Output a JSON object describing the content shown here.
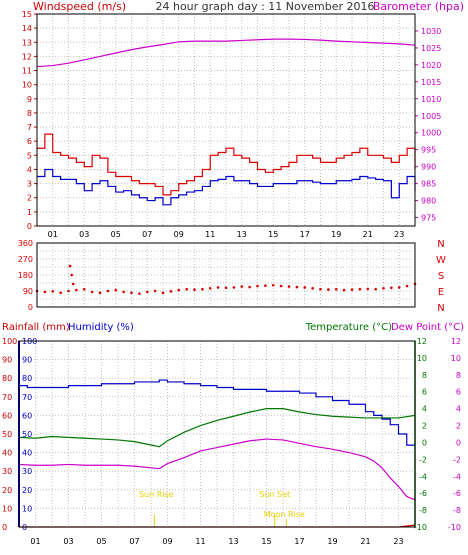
{
  "header": {
    "left_label": "Windspeed (m/s)",
    "center_label": "24 hour graph day : 11 November 2016",
    "right_label": "Barometer (hpa)"
  },
  "colors": {
    "wind_axis": "#cc0000",
    "baro_axis": "#cc00cc",
    "gust": "#dd0000",
    "average": "#0000cc",
    "barometer": "#cc00cc",
    "direction": "#dd0000",
    "rainfall": "#cc0000",
    "humidity": "#0000cc",
    "temperature": "#007700",
    "dew_point": "#cc00cc",
    "sun_moon": "#e8d000",
    "grid": "#c0c0c0"
  },
  "hour_ticks": [
    "01",
    "03",
    "05",
    "07",
    "09",
    "11",
    "13",
    "15",
    "17",
    "19",
    "21",
    "23"
  ],
  "panel2": {
    "compass_labels": [
      "N",
      "W",
      "S",
      "E",
      "N"
    ]
  },
  "panel3": {
    "label_rainfall": "Rainfall (mm)",
    "label_humidity": "Humidity (%)",
    "label_temperature": "Temperature (°C)",
    "label_dewpoint": "Dew Point (°C)",
    "sunrise_label": "Sun Rise",
    "sunset_label": "Sun Set",
    "moonrise_label": "Moon Rise"
  },
  "chart_data": [
    {
      "type": "line",
      "x_unit": "hour",
      "xlim": [
        0,
        24
      ],
      "y_left": {
        "ylim": [
          0,
          15
        ],
        "ticks": [
          0,
          1,
          2,
          3,
          4,
          5,
          6,
          7,
          8,
          9,
          10,
          11,
          12,
          13,
          14,
          15
        ]
      },
      "y_right": {
        "ylim": [
          972.5,
          1035
        ],
        "ticks": [
          975,
          980,
          985,
          990,
          995,
          1000,
          1005,
          1010,
          1015,
          1020,
          1025,
          1030
        ]
      },
      "series": [
        {
          "name": "Windspeed (m/s)",
          "axis": "left",
          "x": [
            0,
            0.5,
            1,
            1.5,
            2,
            2.5,
            3,
            3.5,
            4,
            4.5,
            5,
            5.5,
            6,
            6.5,
            7,
            7.5,
            8,
            8.5,
            9,
            9.5,
            10,
            10.5,
            11,
            11.5,
            12,
            12.5,
            13,
            13.5,
            14,
            14.5,
            15,
            15.5,
            16,
            16.5,
            17,
            17.5,
            18,
            18.5,
            19,
            19.5,
            20,
            20.5,
            21,
            21.5,
            22,
            22.5,
            23,
            23.5,
            24
          ],
          "y": [
            5.5,
            6.5,
            5.2,
            5,
            4.8,
            4.5,
            4.2,
            5,
            4.8,
            3.8,
            3.5,
            3.5,
            3.2,
            3,
            3,
            2.8,
            2.2,
            2.5,
            3,
            3.2,
            3.5,
            4,
            5,
            5.2,
            5.5,
            5,
            4.8,
            4.5,
            4,
            3.8,
            4,
            4.2,
            4.5,
            5,
            5,
            4.8,
            4.5,
            4.5,
            4.8,
            5,
            5.2,
            5.5,
            5,
            5,
            4.8,
            4.5,
            5,
            5.5,
            4
          ]
        },
        {
          "name": "Windspeed average",
          "axis": "left",
          "x": [
            0,
            0.5,
            1,
            1.5,
            2,
            2.5,
            3,
            3.5,
            4,
            4.5,
            5,
            5.5,
            6,
            6.5,
            7,
            7.5,
            8,
            8.5,
            9,
            9.5,
            10,
            10.5,
            11,
            11.5,
            12,
            12.5,
            13,
            13.5,
            14,
            14.5,
            15,
            15.5,
            16,
            16.5,
            17,
            17.5,
            18,
            18.5,
            19,
            19.5,
            20,
            20.5,
            21,
            21.5,
            22,
            22.5,
            23,
            23.5,
            24
          ],
          "y": [
            3.5,
            4,
            3.5,
            3.3,
            3.3,
            3,
            2.5,
            3,
            3.2,
            2.8,
            2.4,
            2.5,
            2.2,
            2,
            1.8,
            2,
            1.5,
            2,
            2.2,
            2.4,
            2.5,
            2.8,
            3.2,
            3.3,
            3.5,
            3.2,
            3.2,
            3,
            2.8,
            2.8,
            3,
            3,
            3,
            3.2,
            3.2,
            3.1,
            3,
            3,
            3.2,
            3.2,
            3.3,
            3.5,
            3.4,
            3.3,
            3.2,
            2,
            3,
            3.5,
            2.5
          ]
        },
        {
          "name": "Barometer (hpa)",
          "axis": "right",
          "x": [
            0,
            1,
            2,
            3,
            4,
            5,
            6,
            7,
            8,
            9,
            10,
            11,
            12,
            13,
            14,
            15,
            16,
            17,
            18,
            19,
            20,
            21,
            22,
            23,
            24
          ],
          "y": [
            1019.5,
            1019.8,
            1020.5,
            1021.5,
            1022.5,
            1023.5,
            1024.5,
            1025.3,
            1026,
            1026.8,
            1027,
            1027,
            1027,
            1027.2,
            1027.4,
            1027.6,
            1027.6,
            1027.5,
            1027.3,
            1027,
            1026.8,
            1026.6,
            1026.4,
            1026.2,
            1025.8
          ]
        }
      ]
    },
    {
      "type": "scatter",
      "x_unit": "hour",
      "xlim": [
        0,
        24
      ],
      "ylim": [
        0,
        360
      ],
      "y_ticks": [
        0,
        45,
        90,
        135,
        180,
        225,
        270,
        315,
        360
      ],
      "series": [
        {
          "name": "Wind direction",
          "x": [
            0,
            0.5,
            1,
            1.5,
            2,
            2.5,
            3,
            3.5,
            4,
            4.5,
            5,
            5.5,
            6,
            6.5,
            7,
            7.5,
            8,
            8.5,
            9,
            9.5,
            10,
            10.5,
            11,
            11.5,
            12,
            12.5,
            13,
            13.5,
            14,
            14.5,
            15,
            15.5,
            16,
            16.5,
            17,
            17.5,
            18,
            18.5,
            19,
            19.5,
            20,
            20.5,
            21,
            21.5,
            22,
            22.5,
            23,
            23.5,
            24,
            2.1,
            2.2,
            2.3
          ],
          "y": [
            90,
            85,
            88,
            80,
            90,
            95,
            100,
            85,
            80,
            90,
            95,
            85,
            80,
            75,
            85,
            90,
            80,
            88,
            95,
            100,
            98,
            100,
            105,
            110,
            108,
            110,
            115,
            112,
            118,
            120,
            122,
            118,
            115,
            112,
            110,
            105,
            100,
            98,
            100,
            95,
            98,
            100,
            102,
            100,
            105,
            108,
            110,
            118,
            130,
            230,
            180,
            130
          ]
        }
      ]
    },
    {
      "type": "line",
      "x_unit": "hour",
      "xlim": [
        0,
        24
      ],
      "y_left": {
        "ylim": [
          0,
          100
        ],
        "ticks": [
          0,
          10,
          20,
          30,
          40,
          50,
          60,
          70,
          80,
          90,
          100
        ]
      },
      "y_right": {
        "ylim": [
          -10,
          12
        ],
        "ticks": [
          -10,
          -8,
          -6,
          -4,
          -2,
          0,
          2,
          4,
          6,
          8,
          10,
          12
        ]
      },
      "series": [
        {
          "name": "Rainfall (mm)",
          "axis": "left",
          "x": [
            0,
            1,
            2,
            3,
            4,
            5,
            6,
            7,
            8,
            9,
            10,
            11,
            12,
            13,
            14,
            15,
            16,
            17,
            18,
            19,
            20,
            21,
            22,
            23,
            24
          ],
          "y": [
            0,
            0,
            0,
            0,
            0,
            0,
            0,
            0,
            0,
            0,
            0,
            0,
            0,
            0,
            0,
            0,
            0,
            0,
            0,
            0,
            0,
            0,
            0,
            0,
            1
          ]
        },
        {
          "name": "Humidity (%)",
          "axis": "left",
          "x": [
            0,
            0.5,
            1,
            2,
            3,
            4,
            5,
            6,
            7,
            8,
            8.5,
            9,
            10,
            11,
            12,
            13,
            14,
            15,
            16,
            17,
            18,
            19,
            20,
            21,
            21.5,
            22,
            22.5,
            23,
            23.5,
            24
          ],
          "y": [
            76,
            75,
            75,
            75,
            76,
            76,
            77,
            77,
            78,
            78,
            79,
            78,
            77,
            76,
            75,
            74,
            74,
            73,
            73,
            72,
            70,
            68,
            66,
            62,
            60,
            58,
            55,
            50,
            44,
            45
          ]
        },
        {
          "name": "Temperature (°C)",
          "axis": "right",
          "x": [
            0,
            1,
            2,
            3,
            4,
            5,
            6,
            7,
            8,
            8.5,
            9,
            10,
            11,
            12,
            13,
            14,
            15,
            16,
            17,
            18,
            19,
            20,
            21,
            22,
            23,
            24
          ],
          "y": [
            0.6,
            0.5,
            0.7,
            0.6,
            0.5,
            0.4,
            0.3,
            0.1,
            -0.3,
            -0.5,
            0.2,
            1.2,
            2,
            2.6,
            3.1,
            3.6,
            4,
            4,
            3.6,
            3.3,
            3.1,
            3,
            2.9,
            2.9,
            2.9,
            3.2
          ]
        },
        {
          "name": "Dew Point (°C)",
          "axis": "right",
          "x": [
            0,
            1,
            2,
            3,
            4,
            5,
            6,
            7,
            8,
            8.5,
            9,
            10,
            11,
            12,
            13,
            14,
            15,
            16,
            17,
            18,
            19,
            20,
            21,
            21.5,
            22,
            22.5,
            23,
            23.5,
            24
          ],
          "y": [
            -2.6,
            -2.7,
            -2.7,
            -2.6,
            -2.7,
            -2.7,
            -2.7,
            -2.8,
            -3,
            -3.1,
            -2.5,
            -1.8,
            -1,
            -0.6,
            -0.2,
            0.2,
            0.4,
            0.3,
            -0.1,
            -0.5,
            -0.8,
            -1.2,
            -1.7,
            -2.2,
            -3,
            -4.2,
            -5.2,
            -6.4,
            -6.8
          ]
        }
      ]
    }
  ]
}
